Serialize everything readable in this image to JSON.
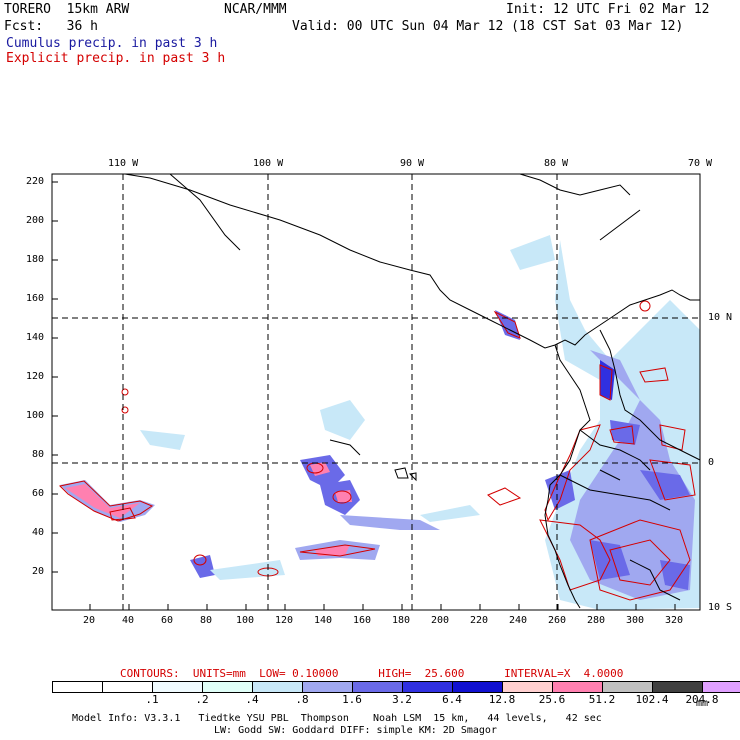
{
  "header": {
    "model": "TORERO  15km ARW",
    "org": "NCAR/MMM",
    "init": "Init: 12 UTC Fri 02 Mar 12",
    "fcst": "Fcst:   36 h",
    "valid": "Valid: 00 UTC Sun 04 Mar 12 (18 CST Sat 03 Mar 12)",
    "legend_blue": "Cumulus precip. in past 3 h",
    "legend_red": "Explicit precip. in past 3 h"
  },
  "axes": {
    "lon_labels": [
      "110 W",
      "100 W",
      "90 W",
      "80 W",
      "70 W"
    ],
    "lat_labels": [
      "10 N",
      "0",
      "10 S"
    ],
    "x_ticks": [
      "20",
      "40",
      "60",
      "80",
      "100",
      "120",
      "140",
      "160",
      "180",
      "200",
      "220",
      "240",
      "260",
      "280",
      "300",
      "320"
    ],
    "y_ticks": [
      "220",
      "200",
      "180",
      "160",
      "140",
      "120",
      "100",
      "80",
      "60",
      "40",
      "20"
    ]
  },
  "contour_info": "CONTOURS:  UNITS=mm  LOW= 0.10000      HIGH=  25.600      INTERVAL=X  4.0000",
  "colorbar": {
    "colors": [
      "#ffffff",
      "#ffffff",
      "#f0fbff",
      "#e0fff8",
      "#c8e8f8",
      "#a0a8f0",
      "#6a6ae8",
      "#3030e0",
      "#1010d0",
      "#ffd0d0",
      "#ff80b0",
      "#c0c0c0",
      "#404040",
      "#e0a0ff"
    ],
    "labels": [
      ".1",
      ".2",
      ".4",
      ".8",
      "1.6",
      "3.2",
      "6.4",
      "12.8",
      "25.6",
      "51.2",
      "102.4",
      "204.8"
    ],
    "unit": "mm"
  },
  "model_info": {
    "line1": "Model Info: V3.3.1   Tiedtke YSU PBL  Thompson    Noah LSM  15 km,   44 levels,   42 sec",
    "line2": "LW: Godd SW: Goddard DIFF: simple KM: 2D Smagor"
  }
}
